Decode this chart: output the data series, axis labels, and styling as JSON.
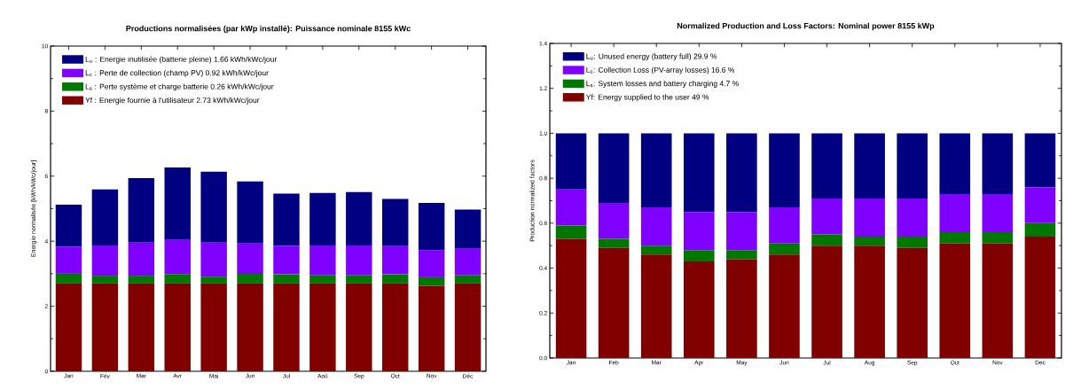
{
  "chart_data": [
    {
      "type": "bar",
      "stacked": true,
      "title": "Productions normalisées (par kWp installé):  Puissance nominale 8155 kWc",
      "ylabel": "Energie normalisée [kWh/kWc/jour]",
      "categories": [
        "Jan",
        "Fév",
        "Mar",
        "Avr",
        "Mai",
        "Jun",
        "Jul",
        "Aoû",
        "Sep",
        "Oct",
        "Nov",
        "Déc"
      ],
      "ylim": [
        0,
        10
      ],
      "yticks": [
        0,
        2,
        4,
        6,
        8,
        10
      ],
      "legend": "top left",
      "series": [
        {
          "name": "Yf : Energie fournie à l'utilisateur   2.73 kWh/kWc/jour",
          "color": "#800000",
          "values": [
            2.7,
            2.7,
            2.7,
            2.7,
            2.7,
            2.7,
            2.7,
            2.7,
            2.7,
            2.7,
            2.63,
            2.7
          ]
        },
        {
          "name": "L$_{s}$ : Perte système et charge batterie   0.26 kWh/kWc/jour",
          "color": "#007800",
          "values": [
            0.3,
            0.24,
            0.24,
            0.29,
            0.21,
            0.3,
            0.28,
            0.25,
            0.25,
            0.28,
            0.26,
            0.25
          ]
        },
        {
          "name": "L$_{c}$ : Perte de collection (champ PV)   0.92 kWh/kWc/jour",
          "color": "#8000ff",
          "values": [
            0.83,
            0.93,
            1.02,
            1.05,
            1.05,
            0.93,
            0.88,
            0.92,
            0.92,
            0.87,
            0.84,
            0.82
          ]
        },
        {
          "name": "L$_{u}$ : Energie inutilisée (batterie pleine)   1.66 kWh/kWc/jour",
          "color": "#000080",
          "values": [
            1.29,
            1.72,
            1.98,
            2.23,
            2.18,
            1.91,
            1.6,
            1.61,
            1.64,
            1.45,
            1.45,
            1.2
          ]
        }
      ]
    },
    {
      "type": "bar",
      "stacked": true,
      "title": "Normalized Production and Loss Factors:  Nominal power 8155 kWp",
      "ylabel": "Production normalized factors",
      "categories": [
        "Jan",
        "Feb",
        "Mar",
        "Apr",
        "May",
        "Jun",
        "Jul",
        "Aug",
        "Sep",
        "Oct",
        "Nov",
        "Dec"
      ],
      "ylim": [
        0,
        1.4
      ],
      "yticks": [
        {
          "value": 0,
          "label": "0.0"
        },
        {
          "value": 0.2,
          "label": "0.2"
        },
        {
          "value": 0.4,
          "label": "0.4"
        },
        {
          "value": 0.6,
          "label": "0.6"
        },
        {
          "value": 0.8,
          "label": "0.8"
        },
        {
          "value": 1,
          "label": "1.0"
        },
        {
          "value": 1.2,
          "label": "1.2"
        },
        {
          "value": 1.4,
          "label": "1.4"
        }
      ],
      "legend": "top left",
      "series": [
        {
          "name": "Yf: Energy supplied to the user   49 %",
          "color": "#800000",
          "values": [
            0.53,
            0.49,
            0.46,
            0.43,
            0.44,
            0.46,
            0.5,
            0.5,
            0.49,
            0.51,
            0.51,
            0.54
          ]
        },
        {
          "name": "L$_{s}$: System losses and battery charging   4.7 %",
          "color": "#007800",
          "values": [
            0.06,
            0.04,
            0.04,
            0.05,
            0.04,
            0.05,
            0.05,
            0.04,
            0.05,
            0.05,
            0.05,
            0.06
          ]
        },
        {
          "name": "L$_{c}$: Collection Loss (PV-array losses)   16.6 %",
          "color": "#8000ff",
          "values": [
            0.16,
            0.16,
            0.17,
            0.17,
            0.17,
            0.16,
            0.16,
            0.17,
            0.17,
            0.17,
            0.17,
            0.16
          ]
        },
        {
          "name": "L$_{u}$: Unused energy (battery full)   29.9 %",
          "color": "#000080",
          "values": [
            0.25,
            0.31,
            0.33,
            0.35,
            0.35,
            0.33,
            0.29,
            0.29,
            0.29,
            0.27,
            0.27,
            0.24
          ]
        }
      ]
    }
  ]
}
